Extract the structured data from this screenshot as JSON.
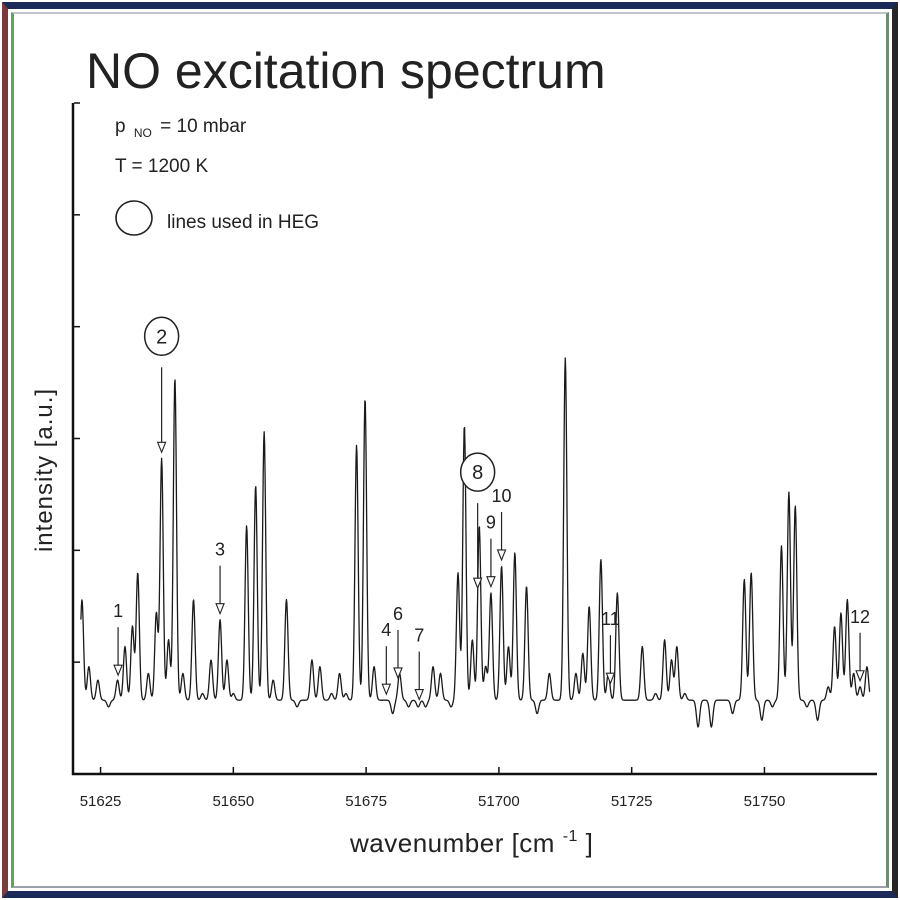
{
  "colors": {
    "frame_outer": "#1c2a5a",
    "frame_left": "#7b3b3b",
    "line": "#1a1a1a"
  },
  "chart_data": {
    "type": "line",
    "title": "NO excitation spectrum",
    "annotations": {
      "pressure_base": "p",
      "pressure_sub": "NO",
      "pressure_value": "= 10 mbar",
      "temperature": "T = 1200 K",
      "legend_label": "lines used in HEG"
    },
    "xlabel": "wavenumber  [cm",
    "xlabel_exp": "-1",
    "xlabel_close": "]",
    "ylabel": "intensity  [a.u.]",
    "xlim": [
      51620,
      51771
    ],
    "ylim": [
      0,
      1
    ],
    "xticks": [
      51625,
      51650,
      51675,
      51700,
      51725,
      51750
    ],
    "grid": false,
    "baseline": 0.11,
    "peaks": [
      [
        51621.5,
        0.26
      ],
      [
        51622.8,
        0.16
      ],
      [
        51624.5,
        0.14
      ],
      [
        51626.5,
        0.1
      ],
      [
        51628.2,
        0.14
      ],
      [
        51629.6,
        0.19
      ],
      [
        51631.0,
        0.22
      ],
      [
        51632.0,
        0.3
      ],
      [
        51634.0,
        0.15
      ],
      [
        51635.5,
        0.24
      ],
      [
        51636.5,
        0.47
      ],
      [
        51637.8,
        0.2
      ],
      [
        51639.0,
        0.59
      ],
      [
        51640.5,
        0.15
      ],
      [
        51642.5,
        0.26
      ],
      [
        51644.2,
        0.12
      ],
      [
        51645.8,
        0.17
      ],
      [
        51647.5,
        0.23
      ],
      [
        51648.8,
        0.17
      ],
      [
        51650.0,
        0.12
      ],
      [
        51652.5,
        0.37
      ],
      [
        51654.2,
        0.43
      ],
      [
        51655.8,
        0.51
      ],
      [
        51657.5,
        0.14
      ],
      [
        51660.0,
        0.26
      ],
      [
        51662.0,
        0.1
      ],
      [
        51664.8,
        0.17
      ],
      [
        51666.3,
        0.16
      ],
      [
        51668.5,
        0.12
      ],
      [
        51670.0,
        0.15
      ],
      [
        51671.2,
        0.12
      ],
      [
        51673.2,
        0.49
      ],
      [
        51674.8,
        0.56
      ],
      [
        51676.5,
        0.16
      ],
      [
        51678.5,
        0.11
      ],
      [
        51680.0,
        0.09
      ],
      [
        51681.3,
        0.15
      ],
      [
        51683.0,
        0.1
      ],
      [
        51684.8,
        0.1
      ],
      [
        51686.2,
        0.1
      ],
      [
        51687.6,
        0.16
      ],
      [
        51689.0,
        0.15
      ],
      [
        51691.0,
        0.1
      ],
      [
        51692.3,
        0.3
      ],
      [
        51693.5,
        0.52
      ],
      [
        51695.0,
        0.2
      ],
      [
        51696.3,
        0.37
      ],
      [
        51697.5,
        0.16
      ],
      [
        51698.5,
        0.27
      ],
      [
        51700.5,
        0.31
      ],
      [
        51701.8,
        0.19
      ],
      [
        51703.0,
        0.33
      ],
      [
        51705.2,
        0.28
      ],
      [
        51707.2,
        0.09
      ],
      [
        51709.5,
        0.15
      ],
      [
        51712.5,
        0.62
      ],
      [
        51714.5,
        0.15
      ],
      [
        51715.8,
        0.18
      ],
      [
        51717.0,
        0.25
      ],
      [
        51719.2,
        0.32
      ],
      [
        51720.6,
        0.15
      ],
      [
        51722.3,
        0.27
      ],
      [
        51724.5,
        0.11
      ],
      [
        51727.0,
        0.19
      ],
      [
        51729.5,
        0.12
      ],
      [
        51731.2,
        0.2
      ],
      [
        51732.5,
        0.17
      ],
      [
        51733.5,
        0.19
      ],
      [
        51735.0,
        0.12
      ],
      [
        51737.5,
        0.07
      ],
      [
        51740.0,
        0.07
      ],
      [
        51742.0,
        0.11
      ],
      [
        51744.0,
        0.09
      ],
      [
        51746.2,
        0.29
      ],
      [
        51747.5,
        0.3
      ],
      [
        51749.5,
        0.08
      ],
      [
        51751.5,
        0.1
      ],
      [
        51753.2,
        0.34
      ],
      [
        51754.6,
        0.42
      ],
      [
        51755.8,
        0.4
      ],
      [
        51758.0,
        0.1
      ],
      [
        51760.0,
        0.08
      ],
      [
        51762.0,
        0.13
      ],
      [
        51763.2,
        0.22
      ],
      [
        51764.4,
        0.24
      ],
      [
        51765.6,
        0.26
      ],
      [
        51766.8,
        0.15
      ],
      [
        51768.0,
        0.13
      ],
      [
        51769.3,
        0.16
      ]
    ],
    "markers": [
      {
        "label": "2",
        "x": 51636.5,
        "circled": true
      },
      {
        "label": "8",
        "x": 51696.0,
        "circled": true
      },
      {
        "label": "1",
        "x": 51628.3,
        "circled": false
      },
      {
        "label": "3",
        "x": 51647.5,
        "circled": false
      },
      {
        "label": "4",
        "x": 51678.8,
        "circled": false
      },
      {
        "label": "6",
        "x": 51681.0,
        "circled": false
      },
      {
        "label": "7",
        "x": 51685.0,
        "circled": false
      },
      {
        "label": "9",
        "x": 51698.5,
        "circled": false
      },
      {
        "label": "10",
        "x": 51700.5,
        "circled": false
      },
      {
        "label": "11",
        "x": 51721.0,
        "circled": false
      },
      {
        "label": "12",
        "x": 51768.0,
        "circled": false
      }
    ]
  }
}
